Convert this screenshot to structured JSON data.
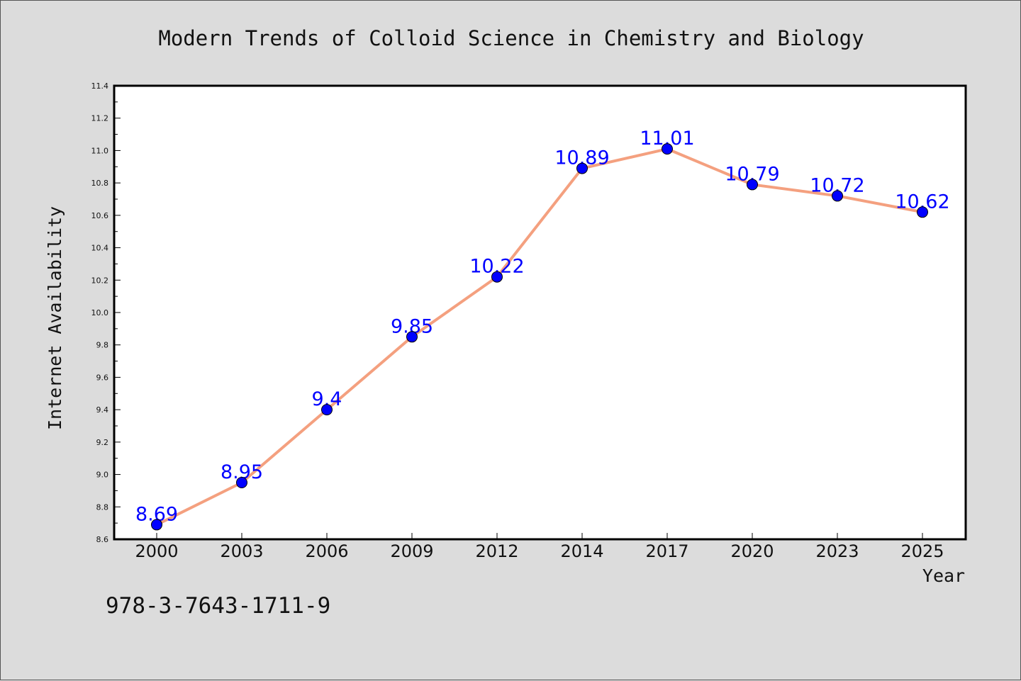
{
  "chart_data": {
    "type": "line",
    "title": "Modern Trends of Colloid Science in Chemistry and Biology",
    "xlabel": "Year",
    "ylabel": "Internet Availability",
    "categories": [
      "2000",
      "2003",
      "2006",
      "2009",
      "2012",
      "2014",
      "2017",
      "2020",
      "2023",
      "2025"
    ],
    "series": [
      {
        "values": [
          8.69,
          8.95,
          9.4,
          9.85,
          10.22,
          10.89,
          11.01,
          10.79,
          10.72,
          10.62
        ]
      }
    ],
    "data_labels": [
      "8.69",
      "8.95",
      "9.4",
      "9.85",
      "10.22",
      "10.89",
      "11.01",
      "10.79",
      "10.72",
      "10.62"
    ],
    "ylim": [
      8.6,
      11.4
    ],
    "yticks": [
      "8.6",
      "8.8",
      "9.0",
      "9.2",
      "9.4",
      "9.6",
      "9.8",
      "10.0",
      "10.2",
      "10.4",
      "10.6",
      "10.8",
      "11.0",
      "11.2",
      "11.4"
    ],
    "grid": false,
    "line_color": "#f4a07f",
    "marker_color": "#0000ff",
    "label_color": "#0000ff",
    "background_color": "#dcdcdc",
    "plot_background_color": "#ffffff"
  },
  "footnote": "978-3-7643-1711-9"
}
